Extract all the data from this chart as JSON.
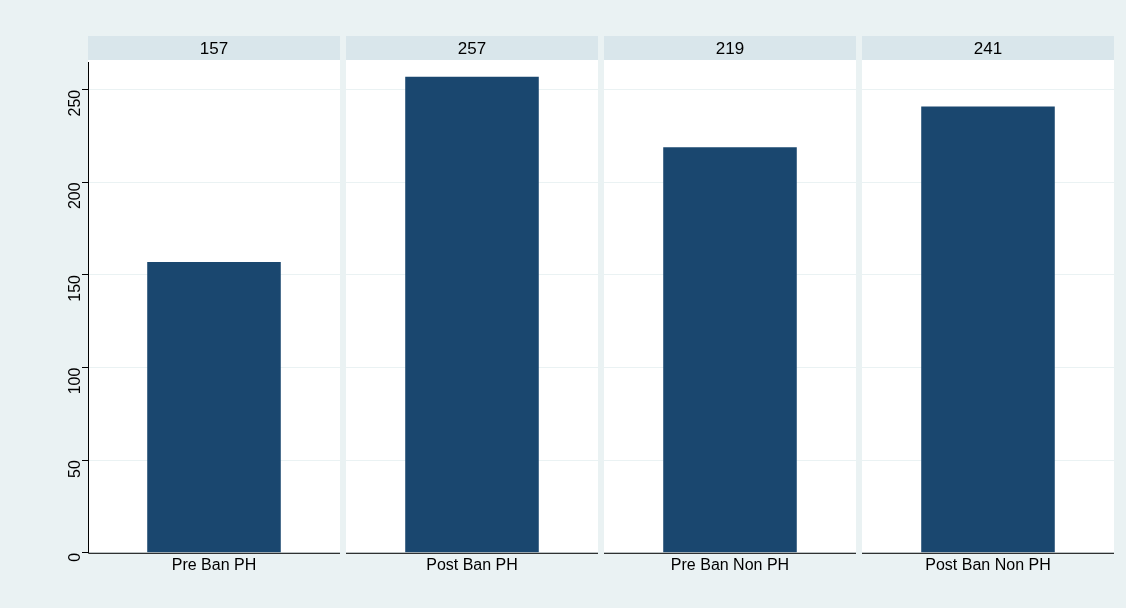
{
  "chart_data": [
    {
      "type": "bar",
      "title": "157",
      "categories": [
        "Pre Ban PH"
      ],
      "values": [
        157
      ],
      "color": "#1a476f",
      "ylim": [
        0,
        265
      ],
      "yticks": [
        0,
        50,
        100,
        150,
        200,
        250
      ],
      "grid": "y"
    },
    {
      "type": "bar",
      "title": "257",
      "categories": [
        "Post Ban PH"
      ],
      "values": [
        257
      ],
      "color": "#1a476f",
      "ylim": [
        0,
        265
      ],
      "yticks": [
        0,
        50,
        100,
        150,
        200,
        250
      ],
      "grid": "y",
      "tick_labels": "x"
    },
    {
      "type": "bar",
      "title": "219",
      "categories": [
        "Pre Ban Non PH"
      ],
      "values": [
        219
      ],
      "color": "#1a476f",
      "ylim": [
        0,
        265
      ],
      "yticks": [
        0,
        50,
        100,
        150,
        200,
        250
      ],
      "grid": "y",
      "tick_labels": "x"
    },
    {
      "type": "bar",
      "title": "241",
      "categories": [
        "Post Ban Non PH"
      ],
      "values": [
        241
      ],
      "color": "#1a476f",
      "ylim": [
        0,
        265
      ],
      "yticks": [
        0,
        50,
        100,
        150,
        200,
        250
      ],
      "grid": "y",
      "tick_labels": "x"
    }
  ]
}
